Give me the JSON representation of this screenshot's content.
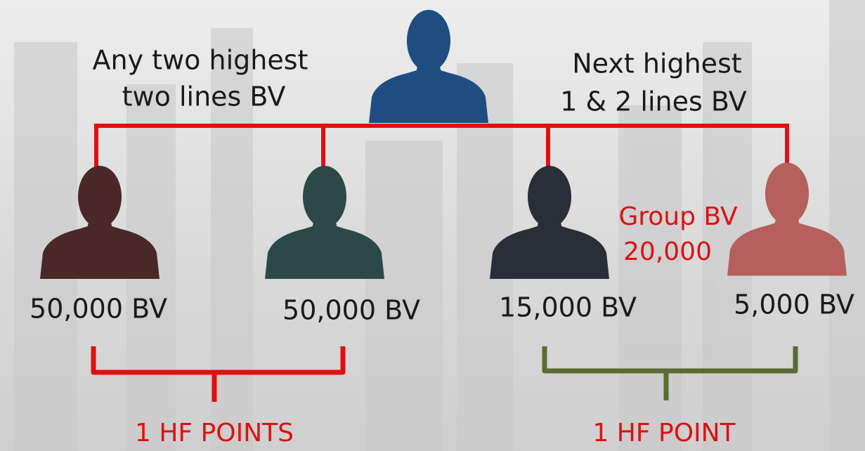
{
  "top_left_label": [
    "Any two highest",
    "two lines BV"
  ],
  "top_right_label": [
    "Next highest",
    "1 & 2 lines BV"
  ],
  "group_label": [
    "Group BV",
    "20,000"
  ],
  "nodes": [
    {
      "label": "50,000 BV"
    },
    {
      "label": "50,000 BV"
    },
    {
      "label": "15,000 BV"
    },
    {
      "label": "5,000 BV"
    }
  ],
  "brackets": [
    {
      "label": "1 HF POINTS"
    },
    {
      "label": "1 HF POINT"
    }
  ]
}
